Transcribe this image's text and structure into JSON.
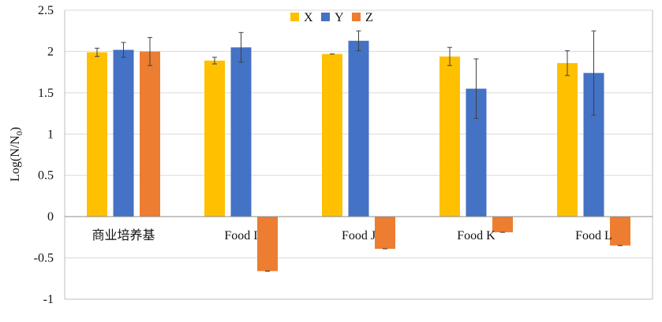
{
  "chart_data": {
    "type": "bar",
    "title": "",
    "xlabel": "",
    "ylabel": "Log(N/N0)",
    "ylabel_main": "Log(N/N",
    "ylabel_sub": "0",
    "ylabel_close": ")",
    "ylim": [
      -1,
      2.5
    ],
    "yticks": [
      -1,
      -0.5,
      0,
      0.5,
      1,
      1.5,
      2,
      2.5
    ],
    "ytick_labels": [
      "-1",
      "-0.5",
      "0",
      "0.5",
      "1",
      "1.5",
      "2",
      "2.5"
    ],
    "gridlines": true,
    "legend_position": "top-center",
    "categories": [
      "商业培养基",
      "Food I",
      "Food J",
      "Food K",
      "Food L"
    ],
    "series": [
      {
        "name": "X",
        "color": "#FFC000",
        "values": [
          1.99,
          1.89,
          1.97,
          1.94,
          1.86
        ],
        "errors": [
          0.05,
          0.04,
          0.0,
          0.11,
          0.15
        ]
      },
      {
        "name": "Y",
        "color": "#4472C4",
        "values": [
          2.02,
          2.05,
          2.13,
          1.55,
          1.74
        ],
        "errors": [
          0.09,
          0.18,
          0.12,
          0.36,
          0.51
        ]
      },
      {
        "name": "Z",
        "color": "#ED7D31",
        "values": [
          2.0,
          -0.66,
          -0.39,
          -0.19,
          -0.35
        ],
        "errors": [
          0.17,
          0.0,
          0.0,
          0.0,
          0.0
        ]
      }
    ]
  }
}
